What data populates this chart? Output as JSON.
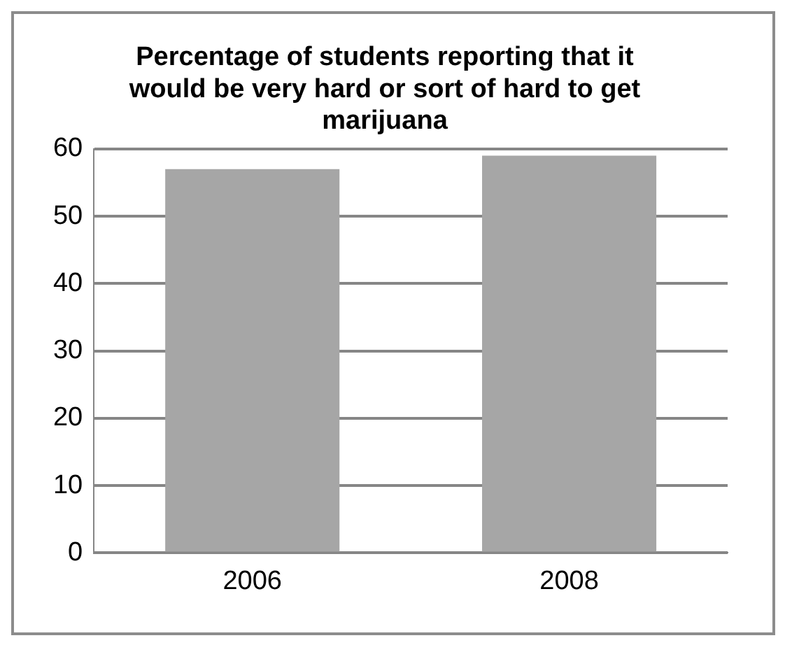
{
  "chart_data": {
    "type": "bar",
    "title": "Percentage of students reporting that it would be very hard or sort of hard to get marijuana",
    "categories": [
      "2006",
      "2008"
    ],
    "values": [
      57,
      59
    ],
    "color": "#a6a6a6",
    "ylim": [
      0,
      60
    ],
    "yticks": [
      0,
      10,
      20,
      30,
      40,
      50,
      60
    ],
    "grid": "y",
    "legend": false
  }
}
